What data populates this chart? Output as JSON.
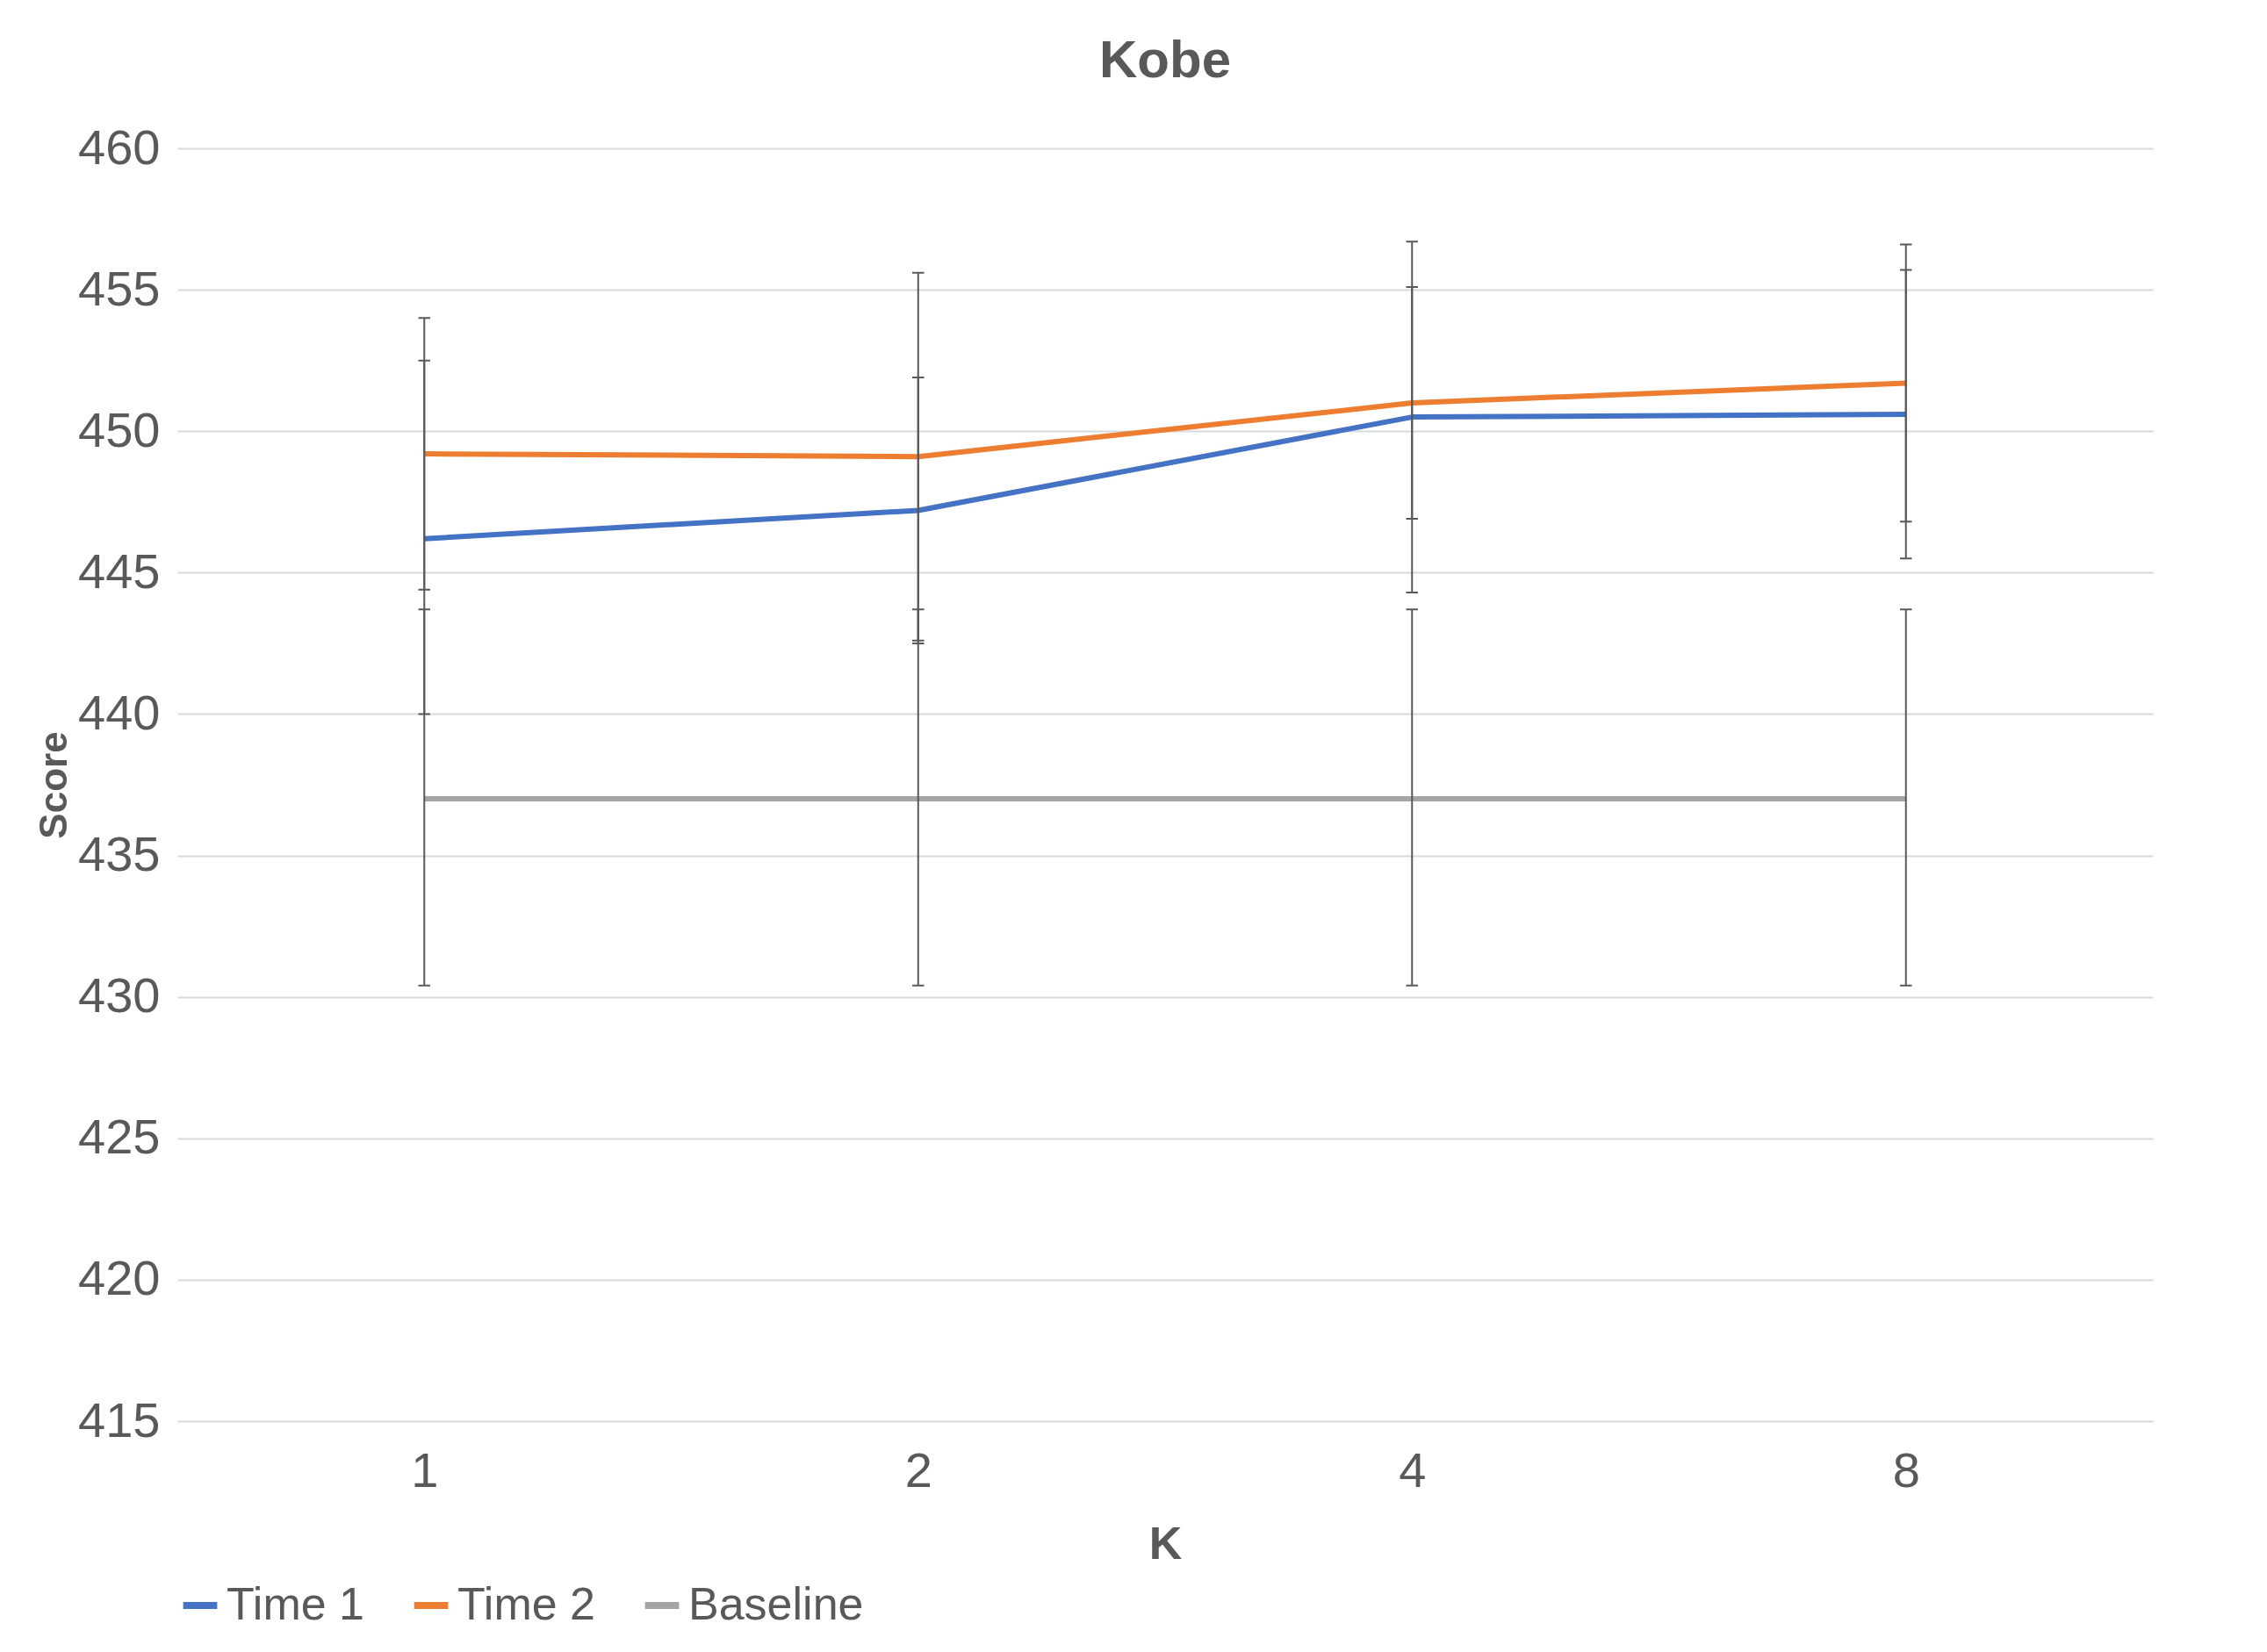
{
  "chart_data": {
    "type": "line",
    "title": "Kobe",
    "xlabel": "K",
    "ylabel": "Score",
    "categories": [
      "1",
      "2",
      "4",
      "8"
    ],
    "series": [
      {
        "name": "Time 1",
        "color": "#4472c4",
        "values": [
          446.2,
          447.2,
          450.5,
          450.6
        ],
        "errors": [
          [
            440.0,
            452.5
          ],
          [
            442.5,
            451.9
          ],
          [
            444.3,
            456.7
          ],
          [
            445.5,
            455.7
          ]
        ]
      },
      {
        "name": "Time 2",
        "color": "#ed7d31",
        "values": [
          449.2,
          449.1,
          451.0,
          451.7
        ],
        "errors": [
          [
            444.4,
            454.0
          ],
          [
            442.6,
            455.6
          ],
          [
            446.9,
            455.1
          ],
          [
            446.8,
            456.6
          ]
        ]
      },
      {
        "name": "Baseline",
        "color": "#a5a5a5",
        "values": [
          437,
          437,
          437,
          437
        ],
        "errors": [
          [
            430.4,
            443.7
          ],
          [
            430.4,
            443.7
          ],
          [
            430.4,
            443.7
          ],
          [
            430.4,
            443.7
          ]
        ]
      }
    ],
    "ylim": [
      415,
      460
    ],
    "yticks": [
      415,
      420,
      425,
      430,
      435,
      440,
      445,
      450,
      455,
      460
    ],
    "grid": "y",
    "legend": "bottom",
    "marker": "none",
    "line_style": "solid"
  }
}
